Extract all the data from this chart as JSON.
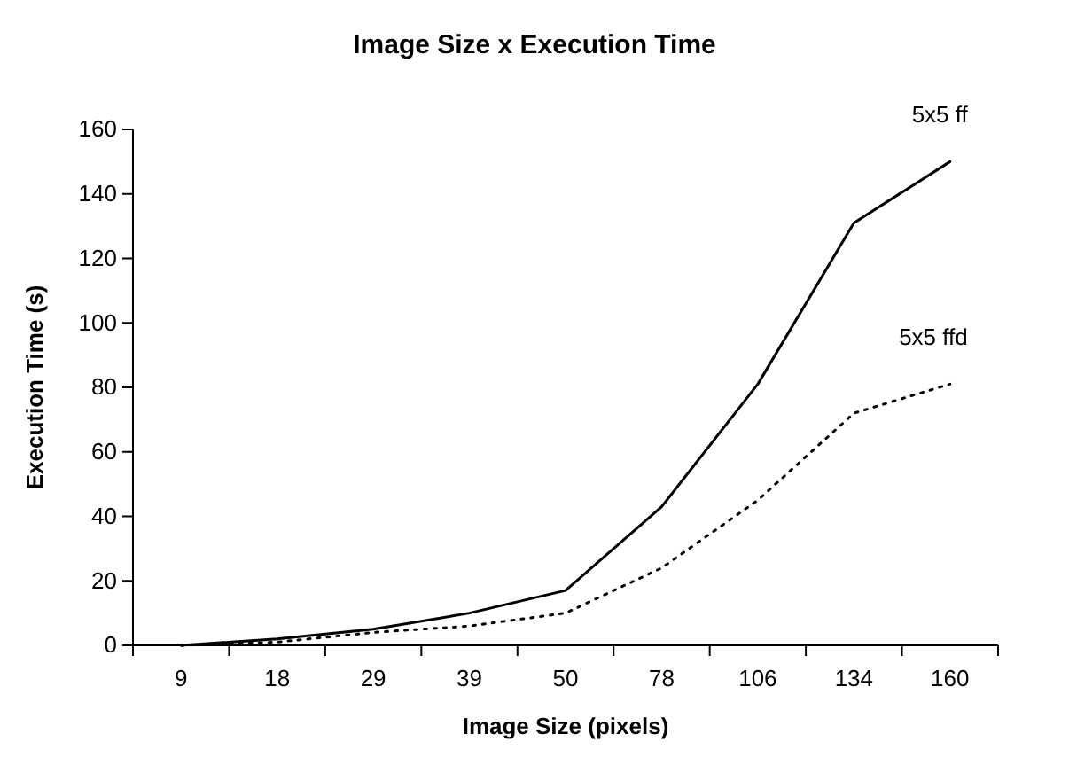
{
  "chart_data": {
    "type": "line",
    "title": "Image Size x Execution Time",
    "xlabel": "Image Size (pixels)",
    "ylabel": "Execution Time (s)",
    "categories": [
      "9",
      "18",
      "29",
      "39",
      "50",
      "78",
      "106",
      "134",
      "160"
    ],
    "series": [
      {
        "name": "5x5 ff",
        "color": "#000000",
        "line_style": "solid",
        "values": [
          0,
          2,
          5,
          10,
          17,
          43,
          81,
          131,
          150
        ]
      },
      {
        "name": "5x5 ffd",
        "color": "#000000",
        "line_style": "dotted",
        "values": [
          0,
          1,
          4,
          6,
          10,
          24,
          45,
          72,
          81
        ]
      }
    ],
    "ylim": [
      0,
      160
    ],
    "yticks": [
      0,
      20,
      40,
      60,
      80,
      100,
      120,
      140,
      160
    ],
    "grid": false,
    "legend": false,
    "marker": "none"
  }
}
